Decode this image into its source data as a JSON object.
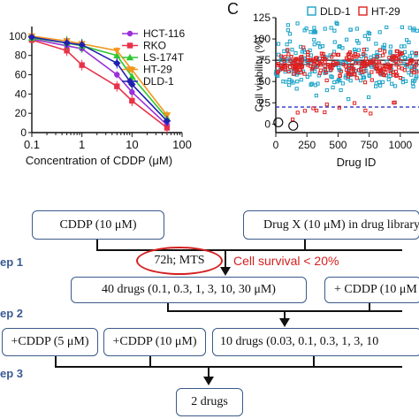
{
  "panel_c_label": "C",
  "chart_data": [
    {
      "type": "line",
      "xlabel": "Concentration of CDDP (μM)",
      "ylabel": "",
      "xscale": "log",
      "x_ticks": [
        "0.1",
        "1",
        "10",
        "100"
      ],
      "y_ticks": [
        "0",
        "20",
        "40",
        "60",
        "80",
        "100"
      ],
      "xlim": [
        0.1,
        100
      ],
      "ylim": [
        0,
        110
      ],
      "x": [
        0.1,
        0.5,
        1,
        5,
        10,
        50
      ],
      "legend_position": "top-right",
      "series": [
        {
          "name": "HCT-116",
          "color": "#9b30d9",
          "marker": "circle",
          "values": [
            97,
            90,
            87,
            60,
            42,
            8
          ]
        },
        {
          "name": "RKO",
          "color": "#e8324a",
          "marker": "square",
          "values": [
            96,
            85,
            70,
            48,
            33,
            5
          ]
        },
        {
          "name": "LS-174T",
          "color": "#2fc72f",
          "marker": "triangle",
          "values": [
            98,
            93,
            90,
            80,
            58,
            15
          ]
        },
        {
          "name": "HT-29",
          "color": "#f2961c",
          "marker": "triangle-down",
          "values": [
            100,
            95,
            92,
            85,
            65,
            18
          ]
        },
        {
          "name": "DLD-1",
          "color": "#2020b0",
          "marker": "diamond",
          "values": [
            99,
            93,
            91,
            72,
            50,
            12
          ]
        }
      ]
    },
    {
      "type": "scatter",
      "xlabel": "Drug ID",
      "ylabel": "Cell viability (%)",
      "x_ticks": [
        "0",
        "250",
        "500",
        "750",
        "1000"
      ],
      "y_ticks": [
        "0",
        "25",
        "50",
        "75",
        "100",
        "125"
      ],
      "xlim": [
        0,
        1150
      ],
      "ylim": [
        -10,
        125
      ],
      "legend_position": "top",
      "reference_lines": [
        75,
        70,
        20
      ],
      "series": [
        {
          "name": "DLD-1",
          "color": "#1aa3c8",
          "marker": "open-square"
        },
        {
          "name": "HT-29",
          "color": "#e02020",
          "marker": "open-square"
        }
      ]
    }
  ],
  "flowchart": {
    "steps": [
      "ep 1",
      "ep 2",
      "ep 3"
    ],
    "box_cddp": "CDDP (10 μM)",
    "box_drug_x": "Drug X (10 μM) in drug library",
    "oval_text": "72h;  MTS",
    "survival_text": "Cell survival < 20%",
    "box_40_drugs": "40 drugs (0.1,  0.3, 1,  3,  10,  30 μM)",
    "box_cddp_10_right": "+ CDDP (10 μM",
    "box_cddp_5": "+CDDP (5 μM)",
    "box_cddp_10": "+CDDP (10 μM)",
    "box_10_drugs": "10 drugs (0.03,  0.1,  0.3, 1,  3,  10",
    "box_2_drugs": "2 drugs"
  }
}
